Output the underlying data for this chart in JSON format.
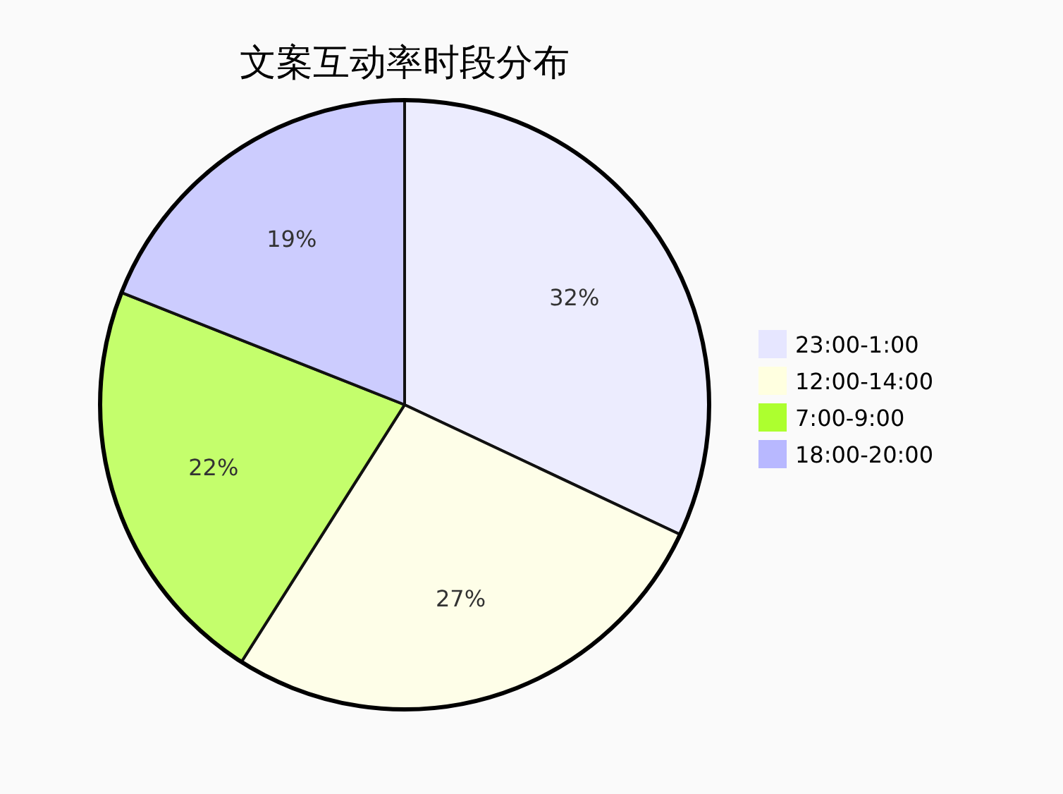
{
  "chart_data": {
    "type": "pie",
    "title": "文案互动率时段分布",
    "categories": [
      "23:00-1:00",
      "12:00-14:00",
      "7:00-9:00",
      "18:00-20:00"
    ],
    "values": [
      32,
      27,
      22,
      19
    ],
    "value_labels": [
      "32%",
      "27%",
      "22%",
      "19%"
    ],
    "colors": [
      "#e6e6ff",
      "#ffffe0",
      "#adff2f",
      "#b8b8ff"
    ],
    "legend": "right"
  }
}
